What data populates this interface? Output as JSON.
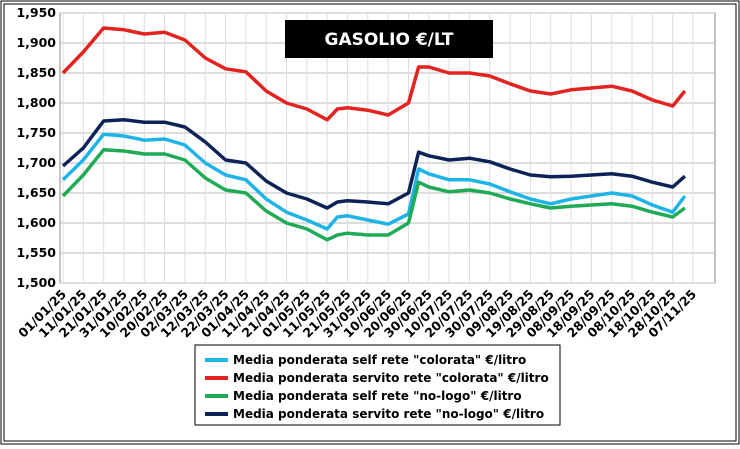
{
  "chart_data": {
    "type": "line",
    "title": "GASOLIO €/LT",
    "x": [
      "01/01/25",
      "11/01/25",
      "21/01/25",
      "31/01/25",
      "10/02/25",
      "20/02/25",
      "02/03/25",
      "12/03/25",
      "22/03/25",
      "01/04/25",
      "11/04/25",
      "21/04/25",
      "01/05/25",
      "11/05/25",
      "16/05/25",
      "21/05/25",
      "31/05/25",
      "10/06/25",
      "20/06/25",
      "25/06/25",
      "30/06/25",
      "10/07/25",
      "20/07/25",
      "30/07/25",
      "09/08/25",
      "19/08/25",
      "29/08/25",
      "08/09/25",
      "18/09/25",
      "28/09/25",
      "08/10/25",
      "18/10/25",
      "28/10/25",
      "03/11/25"
    ],
    "series": [
      {
        "name": "Media ponderata self rete \"colorata\" €/litro",
        "color": "#1fb4e8",
        "values": [
          1.672,
          1.705,
          1.748,
          1.745,
          1.738,
          1.74,
          1.73,
          1.7,
          1.68,
          1.672,
          1.64,
          1.618,
          1.605,
          1.59,
          1.61,
          1.612,
          1.605,
          1.598,
          1.615,
          1.69,
          1.682,
          1.672,
          1.672,
          1.665,
          1.652,
          1.64,
          1.632,
          1.64,
          1.645,
          1.65,
          1.645,
          1.63,
          1.618,
          1.645
        ]
      },
      {
        "name": "Media ponderata servito rete \"colorata\" €/litro",
        "color": "#e3231f",
        "values": [
          1.85,
          1.885,
          1.925,
          1.922,
          1.915,
          1.918,
          1.905,
          1.875,
          1.857,
          1.852,
          1.82,
          1.8,
          1.79,
          1.772,
          1.79,
          1.792,
          1.788,
          1.78,
          1.8,
          1.86,
          1.86,
          1.85,
          1.85,
          1.845,
          1.832,
          1.82,
          1.815,
          1.822,
          1.825,
          1.828,
          1.82,
          1.805,
          1.795,
          1.82
        ]
      },
      {
        "name": "Media ponderata self rete \"no-logo\" €/litro",
        "color": "#1faa55",
        "values": [
          1.645,
          1.68,
          1.722,
          1.72,
          1.715,
          1.715,
          1.705,
          1.675,
          1.655,
          1.65,
          1.62,
          1.6,
          1.59,
          1.572,
          1.58,
          1.583,
          1.58,
          1.58,
          1.6,
          1.668,
          1.66,
          1.652,
          1.655,
          1.65,
          1.64,
          1.632,
          1.625,
          1.628,
          1.63,
          1.632,
          1.628,
          1.618,
          1.61,
          1.625
        ]
      },
      {
        "name": "Media ponderata servito rete \"no-logo\" €/litro",
        "color": "#0d2358",
        "values": [
          1.695,
          1.725,
          1.77,
          1.772,
          1.768,
          1.768,
          1.76,
          1.735,
          1.705,
          1.7,
          1.67,
          1.65,
          1.64,
          1.625,
          1.635,
          1.637,
          1.635,
          1.632,
          1.65,
          1.718,
          1.712,
          1.705,
          1.708,
          1.702,
          1.69,
          1.68,
          1.677,
          1.678,
          1.68,
          1.682,
          1.678,
          1.668,
          1.66,
          1.678
        ]
      }
    ],
    "xlim": [
      "01/01/25",
      "07/11/25"
    ],
    "xticks": [
      "01/01/25",
      "11/01/25",
      "21/01/25",
      "31/01/25",
      "10/02/25",
      "20/02/25",
      "02/03/25",
      "12/03/25",
      "22/03/25",
      "01/04/25",
      "11/04/25",
      "21/04/25",
      "01/05/25",
      "11/05/25",
      "21/05/25",
      "31/05/25",
      "10/06/25",
      "20/06/25",
      "30/06/25",
      "10/07/25",
      "20/07/25",
      "30/07/25",
      "09/08/25",
      "19/08/25",
      "29/08/25",
      "08/09/25",
      "18/09/25",
      "28/09/25",
      "08/10/25",
      "18/10/25",
      "28/10/25",
      "07/11/25"
    ],
    "ylim": [
      1.5,
      1.95
    ],
    "yticks": [
      {
        "value": 1.5,
        "label": "1,500"
      },
      {
        "value": 1.55,
        "label": "1,550"
      },
      {
        "value": 1.6,
        "label": "1,600"
      },
      {
        "value": 1.65,
        "label": "1,650"
      },
      {
        "value": 1.7,
        "label": "1,700"
      },
      {
        "value": 1.75,
        "label": "1,750"
      },
      {
        "value": 1.8,
        "label": "1,800"
      },
      {
        "value": 1.85,
        "label": "1,850"
      },
      {
        "value": 1.9,
        "label": "1,900"
      },
      {
        "value": 1.95,
        "label": "1,950"
      }
    ],
    "grid": true,
    "legend": "bottom"
  }
}
